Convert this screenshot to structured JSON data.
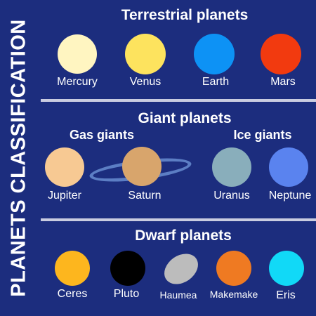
{
  "side_title": "PLANETS CLASSIFICATION",
  "sections": {
    "terrestrial": {
      "title": "Terrestrial planets"
    },
    "giant": {
      "title": "Giant planets",
      "gas_title": "Gas giants",
      "ice_title": "Ice giants"
    },
    "dwarf": {
      "title": "Dwarf planets"
    }
  },
  "planets": {
    "mercury": {
      "label": "Mercury",
      "color": "#fff5c1"
    },
    "venus": {
      "label": "Venus",
      "color": "#fde35e"
    },
    "earth": {
      "label": "Earth",
      "color": "#0d92f5"
    },
    "mars": {
      "label": "Mars",
      "color": "#f23a0f"
    },
    "jupiter": {
      "label": "Jupiter",
      "color": "#f7c993"
    },
    "saturn": {
      "label": "Saturn",
      "color": "#d8a56c",
      "ring_color": "#5c7ec4"
    },
    "uranus": {
      "label": "Uranus",
      "color": "#89aebb"
    },
    "neptune": {
      "label": "Neptune",
      "color": "#5a83ef"
    },
    "ceres": {
      "label": "Ceres",
      "color": "#fdb61e"
    },
    "pluto": {
      "label": "Pluto",
      "color": "#000000"
    },
    "haumea": {
      "label": "Haumea",
      "color": "#bcbcbc"
    },
    "makemake": {
      "label": "Makemake",
      "color": "#ef7a22"
    },
    "eris": {
      "label": "Eris",
      "color": "#11d9f7"
    }
  }
}
